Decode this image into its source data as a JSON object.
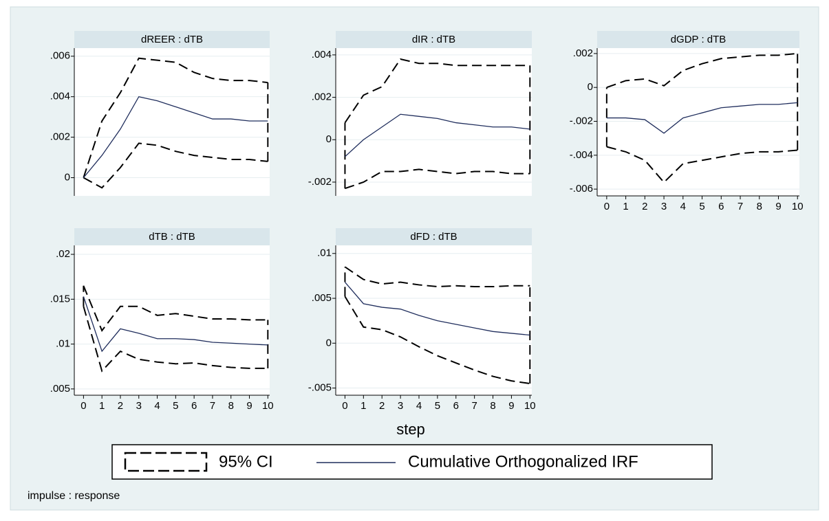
{
  "chart_data": [
    {
      "type": "line",
      "title": "dREER : dTB",
      "x": [
        0,
        1,
        2,
        3,
        4,
        5,
        6,
        7,
        8,
        9,
        10
      ],
      "xlim": [
        -0.5,
        10.1
      ],
      "irf": [
        0,
        0.0011,
        0.0024,
        0.004,
        0.0038,
        0.0035,
        0.0032,
        0.0029,
        0.0029,
        0.0028,
        0.0028
      ],
      "ci_upper": [
        0,
        0.0028,
        0.0042,
        0.0059,
        0.0058,
        0.0057,
        0.0052,
        0.0049,
        0.0048,
        0.0048,
        0.0047
      ],
      "ci_lower": [
        0,
        -0.0005,
        0.0005,
        0.0017,
        0.0016,
        0.0013,
        0.0011,
        0.001,
        0.0009,
        0.0009,
        0.0008
      ],
      "ylim": [
        -0.0009,
        0.0064
      ],
      "yticks": [
        0,
        {
          "value": 0.002,
          "label": ".002"
        },
        {
          "value": 0.004,
          "label": ".004"
        },
        {
          "value": 0.006,
          "label": ".006"
        }
      ]
    },
    {
      "type": "line",
      "title": "dIR : dTB",
      "x": [
        0,
        1,
        2,
        3,
        4,
        5,
        6,
        7,
        8,
        9,
        10
      ],
      "xlim": [
        -0.5,
        10.1
      ],
      "irf": [
        -0.0008,
        0,
        0.0006,
        0.0012,
        0.0011,
        0.001,
        0.0008,
        0.0007,
        0.0006,
        0.0006,
        0.0005
      ],
      "ci_upper": [
        0.0008,
        0.0021,
        0.0025,
        0.0038,
        0.0036,
        0.0036,
        0.0035,
        0.0035,
        0.0035,
        0.0035,
        0.0035
      ],
      "ci_lower": [
        -0.0023,
        -0.002,
        -0.0015,
        -0.0015,
        -0.0014,
        -0.0015,
        -0.0016,
        -0.0015,
        -0.0015,
        -0.0016,
        -0.0016
      ],
      "ylim": [
        -0.00265,
        0.00432
      ],
      "yticks": [
        {
          "value": -0.002,
          "label": "-.002"
        },
        0,
        {
          "value": 0.002,
          "label": ".002"
        },
        {
          "value": 0.004,
          "label": ".004"
        }
      ]
    },
    {
      "type": "line",
      "title": "dGDP : dTB",
      "x": [
        0,
        1,
        2,
        3,
        4,
        5,
        6,
        7,
        8,
        9,
        10
      ],
      "xlim": [
        -0.5,
        10.1
      ],
      "xticks": [
        0,
        1,
        2,
        3,
        4,
        5,
        6,
        7,
        8,
        9,
        10
      ],
      "irf": [
        -0.0018,
        -0.0018,
        -0.0019,
        -0.0027,
        -0.0018,
        -0.0015,
        -0.0012,
        -0.0011,
        -0.001,
        -0.001,
        -0.0009
      ],
      "ci_upper": [
        0,
        0.0004,
        0.0005,
        0.0001,
        0.001,
        0.0014,
        0.0017,
        0.0018,
        0.0019,
        0.0019,
        0.002
      ],
      "ci_lower": [
        -0.0035,
        -0.0038,
        -0.0043,
        -0.0056,
        -0.0045,
        -0.0043,
        -0.0041,
        -0.0039,
        -0.0038,
        -0.0038,
        -0.0037
      ],
      "ylim": [
        -0.0064,
        0.00232
      ],
      "yticks": [
        {
          "value": -0.006,
          "label": "-.006"
        },
        {
          "value": -0.004,
          "label": "-.004"
        },
        {
          "value": -0.002,
          "label": "-.002"
        },
        0,
        {
          "value": 0.002,
          "label": ".002"
        }
      ]
    },
    {
      "type": "line",
      "title": "dTB : dTB",
      "x": [
        0,
        1,
        2,
        3,
        4,
        5,
        6,
        7,
        8,
        9,
        10
      ],
      "xlim": [
        -0.5,
        10.1
      ],
      "xticks": [
        0,
        1,
        2,
        3,
        4,
        5,
        6,
        7,
        8,
        9,
        10
      ],
      "irf": [
        0.0153,
        0.0092,
        0.0117,
        0.0112,
        0.0106,
        0.0106,
        0.0105,
        0.0102,
        0.0101,
        0.01,
        0.0099
      ],
      "ci_upper": [
        0.0165,
        0.0115,
        0.0142,
        0.0142,
        0.0132,
        0.0134,
        0.0131,
        0.0128,
        0.0128,
        0.0127,
        0.0127
      ],
      "ci_lower": [
        0.0142,
        0.007,
        0.0092,
        0.0083,
        0.008,
        0.0078,
        0.0079,
        0.0076,
        0.0074,
        0.0073,
        0.0073
      ],
      "ylim": [
        0.0043,
        0.021
      ],
      "yticks": [
        {
          "value": 0.005,
          "label": ".005"
        },
        {
          "value": 0.01,
          "label": ".01"
        },
        {
          "value": 0.015,
          "label": ".015"
        },
        {
          "value": 0.02,
          "label": ".02"
        }
      ]
    },
    {
      "type": "line",
      "title": "dFD : dTB",
      "x": [
        0,
        1,
        2,
        3,
        4,
        5,
        6,
        7,
        8,
        9,
        10
      ],
      "xlim": [
        -0.5,
        10.1
      ],
      "xticks": [
        0,
        1,
        2,
        3,
        4,
        5,
        6,
        7,
        8,
        9,
        10
      ],
      "irf": [
        0.0068,
        0.0044,
        0.004,
        0.0038,
        0.0031,
        0.0025,
        0.0021,
        0.0017,
        0.0013,
        0.0011,
        0.0009
      ],
      "ci_upper": [
        0.0085,
        0.0071,
        0.0066,
        0.0068,
        0.0065,
        0.0063,
        0.0064,
        0.0063,
        0.0063,
        0.0064,
        0.0064
      ],
      "ci_lower": [
        0.0052,
        0.0018,
        0.0015,
        0.0007,
        -0.0004,
        -0.0014,
        -0.0022,
        -0.003,
        -0.0037,
        -0.0042,
        -0.0045
      ],
      "ylim": [
        -0.0058,
        0.0109
      ],
      "yticks": [
        {
          "value": -0.005,
          "label": "-.005"
        },
        0,
        {
          "value": 0.005,
          "label": ".005"
        },
        {
          "value": 0.01,
          "label": ".01"
        }
      ]
    }
  ],
  "xlabel": "step",
  "legend": {
    "items": [
      {
        "label": "95% CI",
        "color": "#000000"
      },
      {
        "label": "Cumulative Orthogonalized IRF",
        "color": "#1f2d5c"
      }
    ]
  },
  "note": "impulse : response"
}
